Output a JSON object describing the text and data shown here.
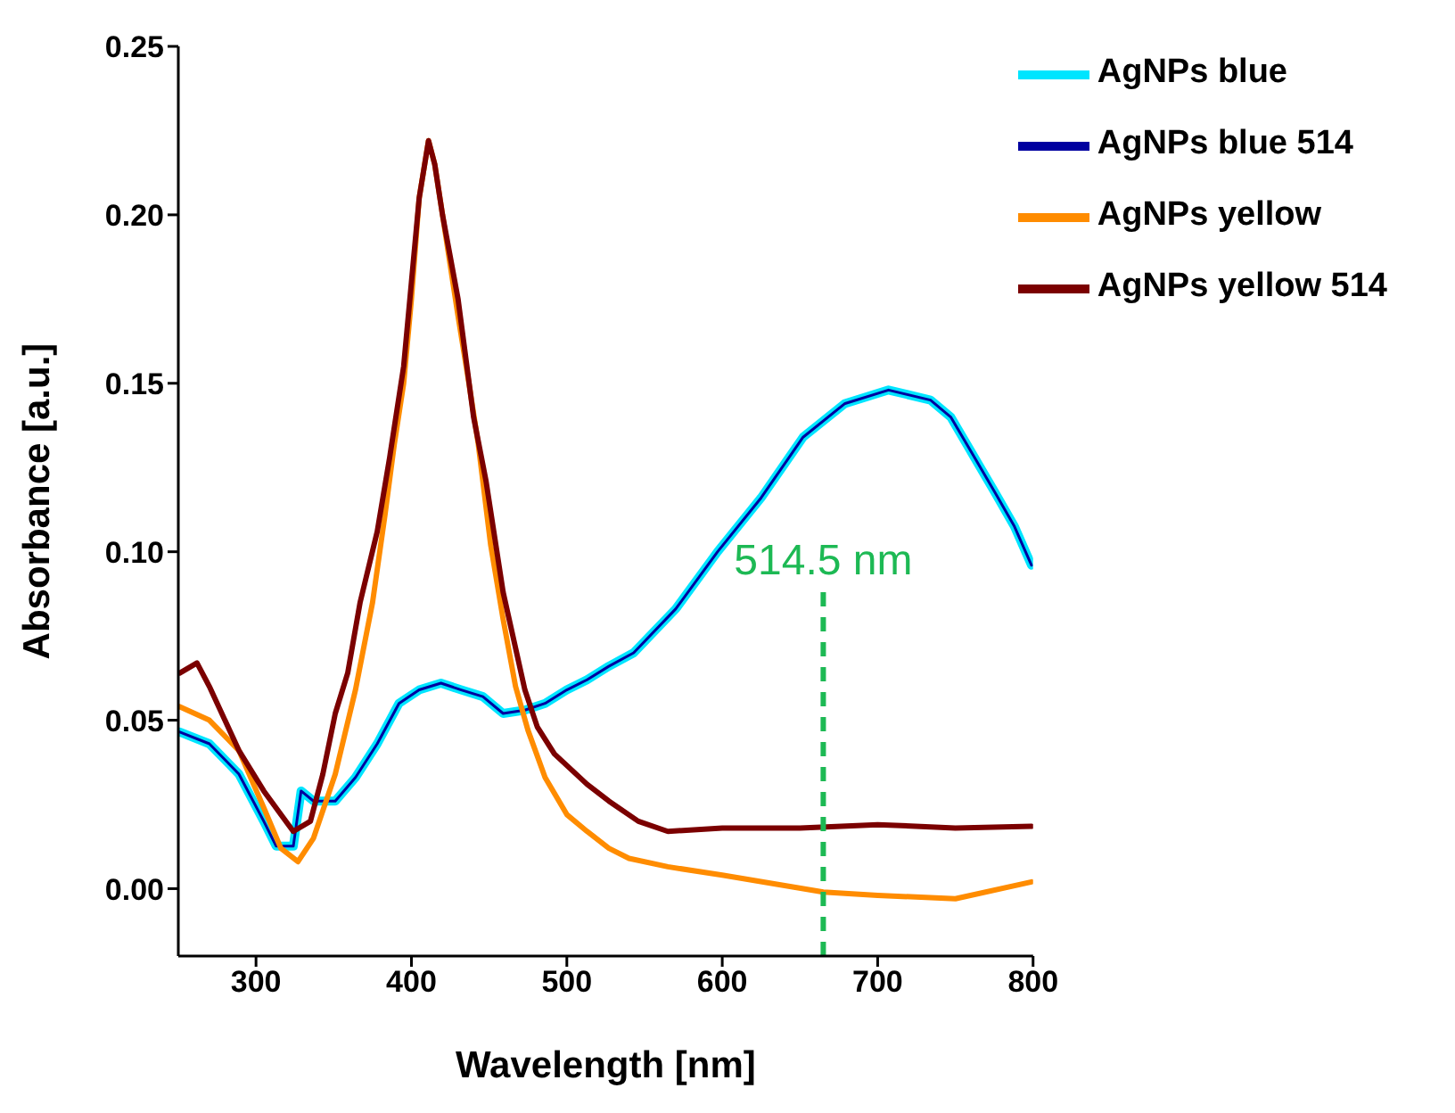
{
  "chart_data": {
    "type": "line",
    "xlabel": "Wavelength [nm]",
    "ylabel": "Absorbance [a.u.]",
    "xlim": [
      250,
      800
    ],
    "xticks": [
      300,
      400,
      500,
      600,
      700,
      800
    ],
    "ylim": [
      -0.02,
      0.25
    ],
    "yticks": [
      {
        "value": 0,
        "label": "0.00"
      },
      0.05,
      {
        "value": 0.1,
        "label": "0.10"
      },
      0.15,
      {
        "value": 0.2,
        "label": "0.20"
      },
      0.25
    ],
    "legend": "top right",
    "marker": "none",
    "line_style": "solid",
    "ref_lines": [
      {
        "axis": "x",
        "value": 665,
        "label": "514.5 nm",
        "color": "#1db954",
        "line_style": "dashed"
      }
    ],
    "series": [
      {
        "name": "AgNPs blue",
        "color": "#00e5ff",
        "x": [
          251,
          270,
          289,
          305,
          313,
          324,
          329,
          337,
          351,
          364,
          378,
          392,
          405,
          419,
          432,
          446,
          459,
          473,
          486,
          500,
          513,
          527,
          543,
          570,
          597,
          625,
          652,
          679,
          707,
          734,
          747,
          761,
          775,
          788,
          799
        ],
        "values": [
          0.0465,
          0.043,
          0.034,
          0.02,
          0.0126,
          0.0126,
          0.029,
          0.026,
          0.026,
          0.033,
          0.043,
          0.055,
          0.059,
          0.061,
          0.059,
          0.057,
          0.052,
          0.053,
          0.055,
          0.059,
          0.062,
          0.066,
          0.07,
          0.083,
          0.1,
          0.116,
          0.134,
          0.144,
          0.148,
          0.145,
          0.14,
          0.129,
          0.118,
          0.1075,
          0.096
        ]
      },
      {
        "name": "AgNPs blue 514",
        "color": "#0000a0",
        "x": [
          251,
          270,
          289,
          305,
          313,
          324,
          329,
          337,
          351,
          364,
          378,
          392,
          405,
          419,
          432,
          446,
          459,
          473,
          486,
          500,
          513,
          527,
          543,
          570,
          597,
          625,
          652,
          679,
          707,
          734,
          747,
          761,
          775,
          788,
          799
        ],
        "values": [
          0.0465,
          0.043,
          0.034,
          0.02,
          0.0126,
          0.0126,
          0.029,
          0.026,
          0.026,
          0.033,
          0.043,
          0.055,
          0.059,
          0.061,
          0.059,
          0.057,
          0.052,
          0.053,
          0.055,
          0.059,
          0.062,
          0.066,
          0.07,
          0.083,
          0.1,
          0.116,
          0.134,
          0.144,
          0.148,
          0.145,
          0.14,
          0.129,
          0.118,
          0.1075,
          0.096
        ]
      },
      {
        "name": "AgNPs yellow",
        "color": "#ff8c00",
        "x": [
          251,
          270,
          289,
          305,
          316,
          327,
          337,
          351,
          364,
          375,
          383,
          389,
          395,
          400,
          405,
          411,
          415,
          420,
          430,
          437,
          443,
          451,
          459,
          467,
          475,
          486,
          500,
          513,
          527,
          540,
          565,
          600,
          665,
          700,
          750,
          799
        ],
        "values": [
          0.054,
          0.05,
          0.041,
          0.024,
          0.012,
          0.008,
          0.015,
          0.034,
          0.059,
          0.085,
          0.111,
          0.132,
          0.15,
          0.175,
          0.205,
          0.222,
          0.215,
          0.2,
          0.17,
          0.15,
          0.132,
          0.102,
          0.08,
          0.06,
          0.047,
          0.033,
          0.022,
          0.017,
          0.012,
          0.009,
          0.0065,
          0.004,
          -0.001,
          -0.002,
          -0.003,
          0.002
        ]
      },
      {
        "name": "AgNPs yellow 514",
        "color": "#7b0000",
        "x": [
          251,
          262,
          270,
          289,
          305,
          316,
          324,
          335,
          343,
          351,
          359,
          367,
          378,
          386,
          395,
          400,
          405,
          411,
          415,
          420,
          430,
          440,
          448,
          459,
          473,
          481,
          492,
          513,
          527,
          546,
          565,
          600,
          650,
          700,
          750,
          799
        ],
        "values": [
          0.064,
          0.067,
          0.06,
          0.041,
          0.029,
          0.022,
          0.017,
          0.02,
          0.034,
          0.052,
          0.064,
          0.085,
          0.106,
          0.128,
          0.155,
          0.18,
          0.205,
          0.222,
          0.215,
          0.2,
          0.175,
          0.14,
          0.121,
          0.088,
          0.059,
          0.048,
          0.04,
          0.031,
          0.026,
          0.02,
          0.017,
          0.018,
          0.018,
          0.019,
          0.018,
          0.0185
        ]
      }
    ]
  }
}
